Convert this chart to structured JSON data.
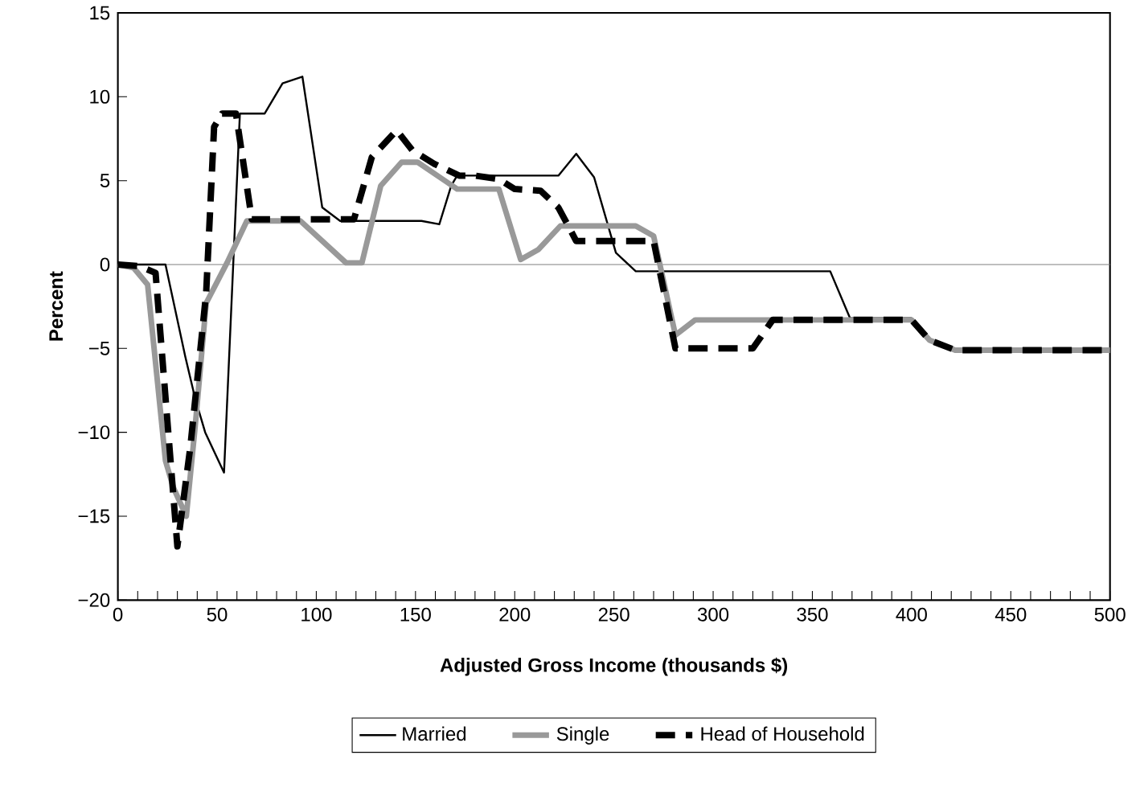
{
  "chart_data": {
    "type": "line",
    "xlabel": "Adjusted Gross Income (thousands $)",
    "ylabel": "Percent",
    "xlim": [
      0,
      500
    ],
    "ylim": [
      -20,
      15
    ],
    "xticks": [
      0,
      {
        "value": 10,
        "label": null
      },
      {
        "value": 20,
        "label": null
      },
      {
        "value": 30,
        "label": null
      },
      {
        "value": 40,
        "label": null
      },
      50,
      {
        "value": 60,
        "label": null
      },
      {
        "value": 70,
        "label": null
      },
      {
        "value": 80,
        "label": null
      },
      {
        "value": 90,
        "label": null
      },
      100,
      {
        "value": 110,
        "label": null
      },
      {
        "value": 120,
        "label": null
      },
      {
        "value": 130,
        "label": null
      },
      {
        "value": 140,
        "label": null
      },
      150,
      {
        "value": 160,
        "label": null
      },
      {
        "value": 170,
        "label": null
      },
      {
        "value": 180,
        "label": null
      },
      {
        "value": 190,
        "label": null
      },
      200,
      {
        "value": 210,
        "label": null
      },
      {
        "value": 220,
        "label": null
      },
      {
        "value": 230,
        "label": null
      },
      {
        "value": 240,
        "label": null
      },
      250,
      {
        "value": 260,
        "label": null
      },
      {
        "value": 270,
        "label": null
      },
      {
        "value": 280,
        "label": null
      },
      {
        "value": 290,
        "label": null
      },
      300,
      {
        "value": 310,
        "label": null
      },
      {
        "value": 320,
        "label": null
      },
      {
        "value": 330,
        "label": null
      },
      {
        "value": 340,
        "label": null
      },
      350,
      {
        "value": 360,
        "label": null
      },
      {
        "value": 370,
        "label": null
      },
      {
        "value": 380,
        "label": null
      },
      {
        "value": 390,
        "label": null
      },
      400,
      {
        "value": 410,
        "label": null
      },
      {
        "value": 420,
        "label": null
      },
      {
        "value": 430,
        "label": null
      },
      {
        "value": 440,
        "label": null
      },
      450,
      {
        "value": 460,
        "label": null
      },
      {
        "value": 470,
        "label": null
      },
      {
        "value": 480,
        "label": null
      },
      {
        "value": 490,
        "label": null
      },
      500
    ],
    "yticks": [
      {
        "value": -20,
        "label": "−20"
      },
      {
        "value": -15,
        "label": "−15"
      },
      {
        "value": -10,
        "label": "−10"
      },
      {
        "value": -5,
        "label": "−5"
      },
      0,
      5,
      10,
      15
    ],
    "legend": "bottom",
    "grid": false,
    "marker": "none",
    "ref_lines": [
      {
        "axis": "y",
        "value": 0,
        "color": "#808080"
      }
    ],
    "series": [
      {
        "name": "Married",
        "color": "#000000",
        "line_style": "solid",
        "x": [
          0,
          24,
          34,
          39,
          44,
          53.5,
          61.5,
          74,
          83,
          93,
          103,
          112,
          153,
          162,
          168,
          171,
          222,
          231,
          240,
          251,
          261,
          359,
          369,
          400,
          409,
          422,
          500
        ],
        "values": [
          0,
          0,
          -5.5,
          -8,
          -10,
          -12.4,
          9,
          9,
          10.8,
          11.2,
          3.4,
          2.6,
          2.6,
          2.4,
          4.7,
          5.3,
          5.3,
          6.6,
          5.2,
          0.7,
          -0.4,
          -0.4,
          -3.2,
          -3.2,
          -4.5,
          -5.1,
          -5.1
        ]
      },
      {
        "name": "Single",
        "color": "#999999",
        "line_style": "solid",
        "x": [
          0,
          8,
          15,
          24,
          28,
          34.5,
          39,
          44.5,
          55,
          65,
          92,
          115,
          123,
          132.5,
          143,
          151,
          166,
          171,
          192,
          203,
          212,
          223,
          261,
          270,
          281,
          291,
          400,
          409,
          422,
          500
        ],
        "values": [
          0,
          -0.2,
          -1.2,
          -11.7,
          -13.3,
          -15,
          -9.6,
          -2.3,
          0.1,
          2.6,
          2.6,
          0.1,
          0.1,
          4.7,
          6.1,
          6.1,
          4.9,
          4.5,
          4.5,
          0.3,
          0.9,
          2.3,
          2.3,
          1.7,
          -4.2,
          -3.3,
          -3.3,
          -4.5,
          -5.1,
          -5.1
        ]
      },
      {
        "name": "Head of Household",
        "color": "#000000",
        "line_style": "dashed",
        "x": [
          0,
          11,
          19,
          30,
          36.5,
          44.5,
          48.5,
          52.5,
          59.5,
          67.5,
          119,
          128,
          140.5,
          148.5,
          159.5,
          172,
          180,
          192,
          200,
          213,
          222,
          227,
          231,
          270,
          281,
          320,
          330,
          400,
          409,
          422,
          500
        ],
        "values": [
          0,
          -0.1,
          -0.5,
          -16.8,
          -10.9,
          -1.7,
          8.2,
          9,
          9,
          2.7,
          2.7,
          6.4,
          8,
          6.8,
          6,
          5.3,
          5.3,
          5.1,
          4.5,
          4.4,
          3.4,
          2.3,
          1.4,
          1.4,
          -5,
          -5,
          -3.3,
          -3.3,
          -4.5,
          -5.1,
          -5.1
        ]
      }
    ]
  }
}
